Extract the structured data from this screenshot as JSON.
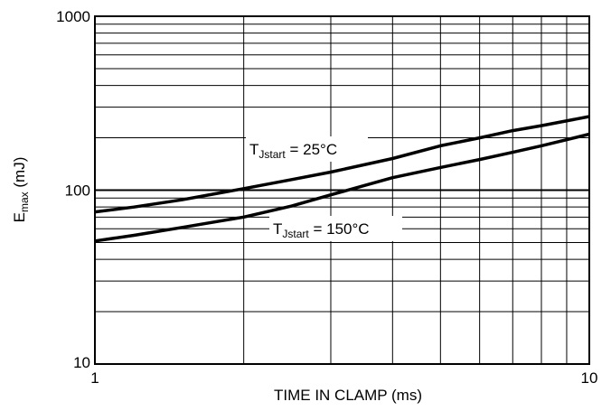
{
  "chart_data": {
    "type": "line",
    "xlabel": "TIME IN CLAMP (ms)",
    "ylabel": {
      "base": "E",
      "sub": "max",
      "unit": " (mJ)"
    },
    "x_scale": "log",
    "y_scale": "log",
    "xlim": [
      1,
      10
    ],
    "ylim": [
      10,
      1000
    ],
    "grid": true,
    "x_ticks": [
      {
        "value": 1,
        "label": "1"
      },
      {
        "value": 10,
        "label": "10"
      }
    ],
    "y_ticks": [
      {
        "value": 10,
        "label": "10"
      },
      {
        "value": 100,
        "label": "100"
      },
      {
        "value": 1000,
        "label": "1000"
      }
    ],
    "series": [
      {
        "name": "T_Jstart = 25°C",
        "label": {
          "pre": "T",
          "sub": "Jstart",
          "post": " = 25°C"
        },
        "x": [
          1,
          1.2,
          1.5,
          2,
          2.5,
          3,
          4,
          5,
          6,
          7,
          8,
          10
        ],
        "y": [
          75,
          80,
          88,
          102,
          115,
          127,
          152,
          180,
          200,
          220,
          235,
          265
        ]
      },
      {
        "name": "T_Jstart = 150°C",
        "label": {
          "pre": "T",
          "sub": "Jstart",
          "post": " = 150°C"
        },
        "x": [
          1,
          1.2,
          1.5,
          2,
          2.5,
          3,
          4,
          5,
          6,
          7,
          8,
          10
        ],
        "y": [
          51,
          55,
          61,
          70,
          81,
          94,
          118,
          135,
          150,
          165,
          180,
          210
        ]
      }
    ]
  }
}
